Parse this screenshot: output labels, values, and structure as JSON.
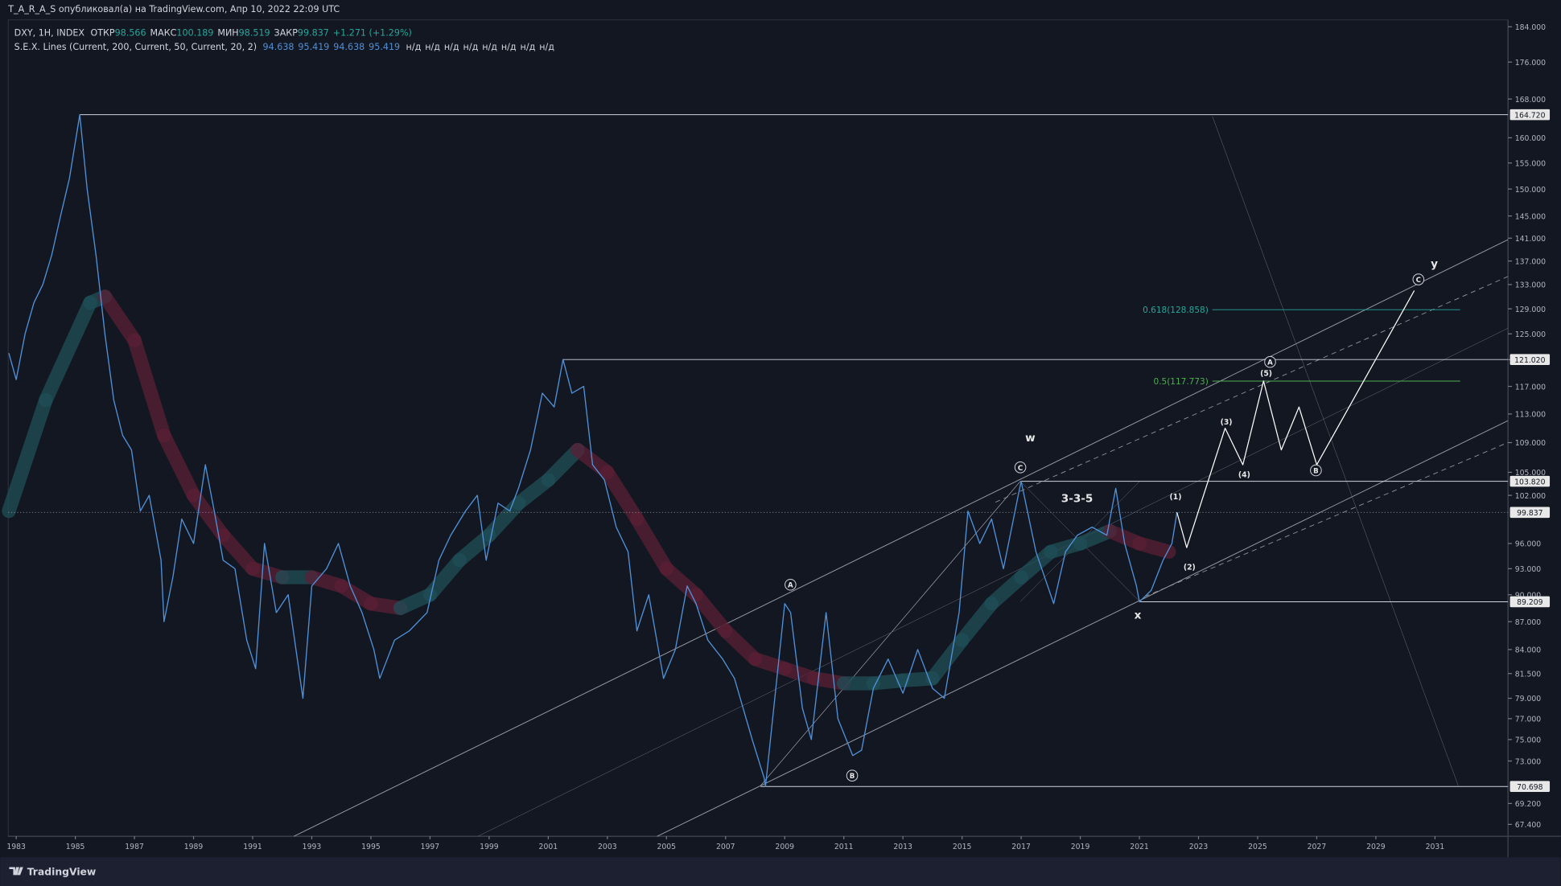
{
  "header": {
    "publisher": "T_A_R_A_S опубликовал(а) на TradingView.com, Апр 10, 2022 22:09 UTC",
    "brand": "TradingView"
  },
  "chart_data": {
    "type": "line",
    "symbol": "DXY, 1H, INDEX",
    "ohlc": [
      {
        "label": "ОТКР",
        "value": 98.566
      },
      {
        "label": "МАКС",
        "value": 100.189
      },
      {
        "label": "МИН",
        "value": 98.519
      },
      {
        "label": "ЗАКР",
        "value": 99.837
      }
    ],
    "change": "+1.271 (+1.29%)",
    "indicator": {
      "name": "S.E.X. Lines (Current, 200, Current, 50, Current, 20, 2)",
      "values": [
        94.638,
        95.419,
        94.638,
        95.419
      ],
      "na": [
        "н/д",
        "н/д",
        "н/д",
        "н/д",
        "н/д",
        "н/д",
        "н/д",
        "н/д"
      ]
    },
    "log": true,
    "xlim": [
      1982.73,
      2033.47
    ],
    "ylim": [
      66.4,
      185.6
    ],
    "xticks": [
      1983,
      1985,
      1987,
      1989,
      1991,
      1993,
      1995,
      1997,
      1999,
      2001,
      2003,
      2005,
      2007,
      2009,
      2011,
      2013,
      2015,
      2017,
      2019,
      2021,
      2023,
      2025,
      2027,
      2029,
      2031
    ],
    "yticks": [
      {
        "value": 184,
        "label": "184.000"
      },
      {
        "value": 176,
        "label": "176.000"
      },
      {
        "value": 168,
        "label": "168.000"
      },
      {
        "value": 160,
        "label": "160.000"
      },
      {
        "value": 155,
        "label": "155.000"
      },
      {
        "value": 150,
        "label": "150.000"
      },
      {
        "value": 145,
        "label": "145.000"
      },
      {
        "value": 141,
        "label": "141.000"
      },
      {
        "value": 137,
        "label": "137.000"
      },
      {
        "value": 133,
        "label": "133.000"
      },
      {
        "value": 129,
        "label": "129.000"
      },
      {
        "value": 125,
        "label": "125.000"
      },
      {
        "value": 121,
        "label": "121.000"
      },
      {
        "value": 117,
        "label": "117.000"
      },
      {
        "value": 113,
        "label": "113.000"
      },
      {
        "value": 109,
        "label": "109.000"
      },
      {
        "value": 105,
        "label": "105.000"
      },
      {
        "value": 102,
        "label": "102.000"
      },
      {
        "value": 96,
        "label": "96.000"
      },
      {
        "value": 93,
        "label": "93.000"
      },
      {
        "value": 90,
        "label": "90.000"
      },
      {
        "value": 87,
        "label": "87.000"
      },
      {
        "value": 84,
        "label": "84.000"
      },
      {
        "value": 81.5,
        "label": "81.500"
      },
      {
        "value": 79,
        "label": "79.000"
      },
      {
        "value": 77,
        "label": "77.000"
      },
      {
        "value": 75,
        "label": "75.000"
      },
      {
        "value": 73,
        "label": "73.000"
      },
      {
        "value": 69.2,
        "label": "69.200"
      },
      {
        "value": 67.4,
        "label": "67.400"
      }
    ],
    "color": "#4f8fd6",
    "x": [
      1982.75,
      1983.0,
      1983.3,
      1983.6,
      1983.9,
      1984.2,
      1984.5,
      1984.8,
      1985.15,
      1985.4,
      1985.7,
      1986.0,
      1986.3,
      1986.6,
      1986.9,
      1987.2,
      1987.5,
      1987.9,
      1988.0,
      1988.3,
      1988.6,
      1989.0,
      1989.4,
      1989.7,
      1990.0,
      1990.4,
      1990.8,
      1991.1,
      1991.4,
      1991.8,
      1992.2,
      1992.7,
      1993.0,
      1993.5,
      1993.9,
      1994.3,
      1994.7,
      1995.1,
      1995.3,
      1995.8,
      1996.3,
      1996.9,
      1997.3,
      1997.7,
      1998.2,
      1998.6,
      1998.9,
      1999.3,
      1999.7,
      2000.0,
      2000.4,
      2000.8,
      2001.2,
      2001.5,
      2001.8,
      2002.2,
      2002.5,
      2002.9,
      2003.3,
      2003.7,
      2004.0,
      2004.4,
      2004.9,
      2005.3,
      2005.7,
      2006.0,
      2006.4,
      2006.9,
      2007.3,
      2007.9,
      2008.3,
      2008.35,
      2008.7,
      2009.0,
      2009.2,
      2009.6,
      2009.9,
      2010.4,
      2010.8,
      2011.3,
      2011.6,
      2012.0,
      2012.5,
      2013.0,
      2013.5,
      2014.0,
      2014.4,
      2014.9,
      2015.2,
      2015.6,
      2016.0,
      2016.4,
      2016.9,
      2017.0,
      2017.5,
      2018.1,
      2018.5,
      2018.9,
      2019.4,
      2019.9,
      2020.2,
      2020.5,
      2020.9,
      2021.0,
      2021.4,
      2021.8,
      2022.1,
      2022.27
    ],
    "values": [
      122,
      118,
      125,
      130,
      133,
      138,
      145,
      152,
      164.72,
      150,
      138,
      125,
      115,
      110,
      108,
      100,
      102,
      94,
      87,
      92,
      99,
      96,
      106,
      100,
      94,
      93,
      85,
      82,
      96,
      88,
      90,
      79,
      91,
      93,
      96,
      91,
      88,
      84,
      81,
      85,
      86,
      88,
      94,
      97,
      100,
      102,
      94,
      101,
      100,
      103,
      108,
      116,
      114,
      121.02,
      116,
      117,
      106,
      104,
      98,
      95,
      86,
      90,
      81,
      84,
      91,
      89,
      85,
      83,
      81,
      75,
      71.5,
      70.7,
      80,
      89,
      88,
      78,
      75,
      88,
      77,
      73.5,
      74,
      80,
      83,
      79.5,
      84,
      80,
      79,
      88,
      100,
      96,
      99,
      93,
      102,
      103.82,
      95,
      89,
      95,
      97,
      98,
      97,
      102.9,
      96,
      91,
      89.2,
      90.5,
      94,
      96,
      99.837
    ],
    "projection": {
      "color": "#ffffff",
      "x": [
        2022.27,
        2022.6,
        2023.9,
        2024.5,
        2025.2,
        2025.8,
        2026.4,
        2027.0,
        2030.3
      ],
      "values": [
        99.837,
        95.5,
        111,
        106,
        117.8,
        108,
        114,
        106,
        132
      ]
    },
    "ma_band": {
      "x": [
        1982.75,
        1984,
        1985.5,
        1986,
        1987,
        1988,
        1989,
        1990,
        1991,
        1992,
        1993,
        1994,
        1995,
        1996,
        1997,
        1998,
        1999,
        2000,
        2001,
        2002,
        2003,
        2004,
        2005,
        2006,
        2007,
        2008,
        2009,
        2010,
        2011,
        2012,
        2013,
        2014,
        2015,
        2016,
        2017,
        2018,
        2019,
        2020,
        2021,
        2022
      ],
      "values": [
        100,
        115,
        130,
        131,
        124,
        110,
        102,
        97,
        93,
        92,
        92,
        91,
        89,
        88.5,
        90,
        94,
        97,
        101,
        104,
        108,
        105,
        99,
        93,
        90,
        86,
        83,
        82,
        81,
        80.5,
        80.5,
        80.8,
        81,
        85,
        89,
        92,
        95,
        96,
        97.5,
        96,
        95
      ],
      "up": "#1f4f57",
      "down": "#5a1f35"
    },
    "levels": [
      {
        "value": 164.72,
        "label": "164.720"
      },
      {
        "value": 121.02,
        "label": "121.020"
      },
      {
        "value": 103.82,
        "label": "103.820"
      },
      {
        "value": 99.837,
        "label": "99.837"
      },
      {
        "value": 89.209,
        "label": "89.209"
      },
      {
        "value": 70.698,
        "label": "70.698"
      }
    ],
    "fibs": [
      {
        "value": 128.858,
        "label": "0.618(128.858)",
        "color": "#26a69a"
      },
      {
        "value": 117.773,
        "label": "0.5(117.773)",
        "color": "#4caf50"
      }
    ],
    "annotations": [
      "A",
      "B",
      "C",
      "w",
      "3-3-5",
      "x",
      "(1)",
      "(2)",
      "(3)",
      "(4)",
      "(5)",
      "A",
      "B",
      "C",
      "y"
    ]
  }
}
